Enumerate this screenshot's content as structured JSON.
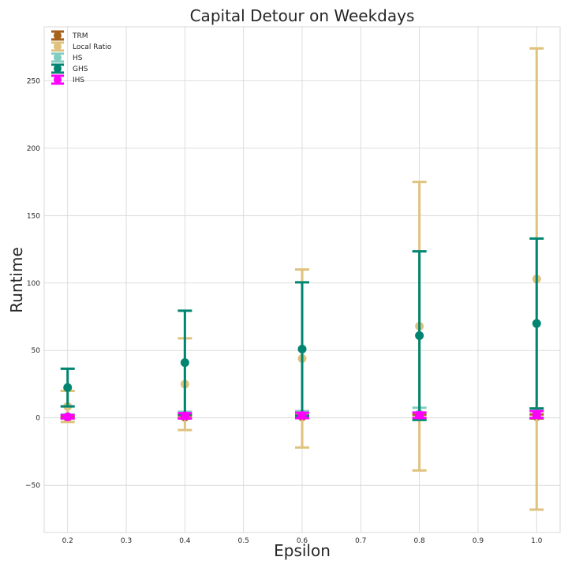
{
  "chart_data": {
    "type": "scatter",
    "title": "Capital Detour on Weekdays",
    "xlabel": "Epsilon",
    "ylabel": "Runtime",
    "xlim": [
      0.16,
      1.04
    ],
    "ylim": [
      -85,
      290
    ],
    "xticks": [
      0.2,
      0.3,
      0.4,
      0.5,
      0.6,
      0.7,
      0.8,
      0.9,
      1.0
    ],
    "xtick_labels": [
      "0.2",
      "0.3",
      "0.4",
      "0.5",
      "0.6",
      "0.7",
      "0.8",
      "0.9",
      "1.0"
    ],
    "yticks": [
      -50,
      0,
      50,
      100,
      150,
      200,
      250
    ],
    "ytick_labels": [
      "−50",
      "0",
      "50",
      "100",
      "150",
      "200",
      "250"
    ],
    "grid": true,
    "legend_position": "top-left",
    "x": [
      0.2,
      0.4,
      0.6,
      0.8,
      1.0
    ],
    "series": [
      {
        "name": "TRM",
        "color": "#a6611a",
        "values": [
          0.3,
          0.5,
          0.8,
          0.8,
          1.0
        ],
        "err": [
          0.5,
          1.0,
          1.0,
          1.5,
          1.5
        ]
      },
      {
        "name": "Local Ratio",
        "color": "#dfc27d",
        "values": [
          8.5,
          25,
          44,
          68,
          103
        ],
        "err": [
          11.5,
          34,
          66,
          107,
          171
        ]
      },
      {
        "name": "HS",
        "color": "#80cdc1",
        "values": [
          1.0,
          2.0,
          2.5,
          3.0,
          3.5
        ],
        "err": [
          1.5,
          2.5,
          2.5,
          4.5,
          3.5
        ]
      },
      {
        "name": "GHS",
        "color": "#018571",
        "values": [
          22.5,
          41,
          51,
          61,
          70
        ],
        "err": [
          14,
          38.5,
          49.5,
          62.5,
          63
        ]
      },
      {
        "name": "IHS",
        "color": "#ff00ff",
        "values": [
          0.8,
          1.5,
          1.8,
          2.0,
          2.5
        ],
        "err": [
          1.2,
          2.0,
          2.0,
          2.0,
          2.5
        ]
      }
    ]
  }
}
